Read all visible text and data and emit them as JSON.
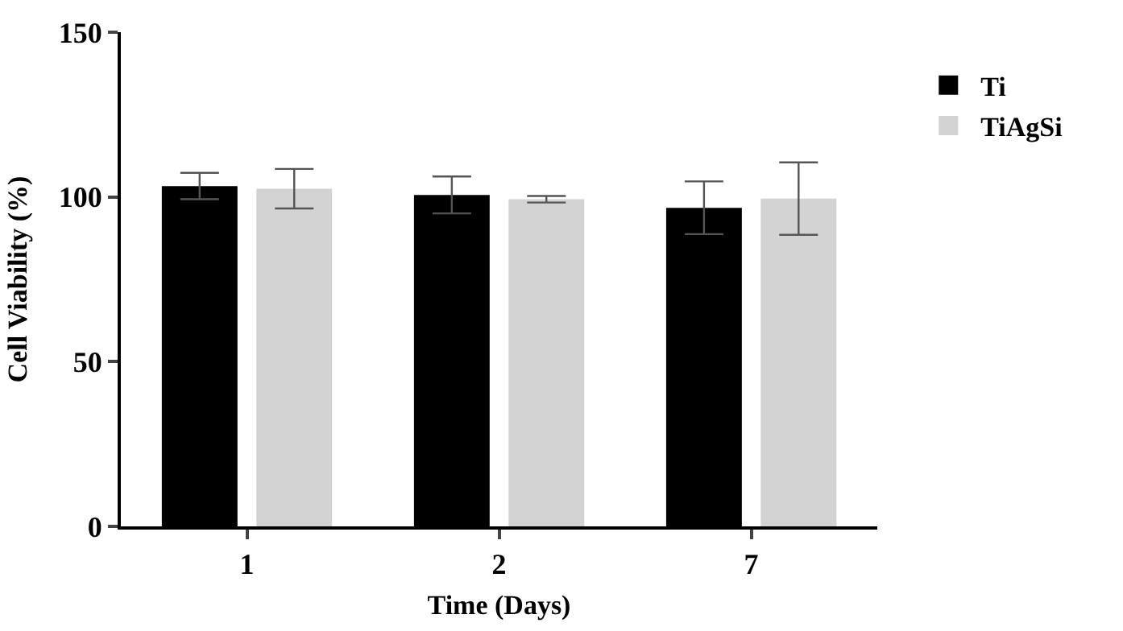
{
  "chart_data": {
    "type": "bar",
    "xlabel": "Time (Days)",
    "ylabel": "Cell Viability (%)",
    "categories": [
      "1",
      "2",
      "7"
    ],
    "series": [
      {
        "name": "Ti",
        "color": "#000000",
        "values": [
          103.3,
          100.6,
          96.7
        ],
        "errors": [
          4,
          5.6,
          8
        ]
      },
      {
        "name": "TiAgSi",
        "color": "#d3d3d3",
        "values": [
          102.5,
          99.3,
          99.5
        ],
        "errors": [
          6,
          1,
          11
        ]
      }
    ],
    "ylim": [
      0,
      150
    ],
    "yticks": [
      0,
      50,
      100,
      150
    ],
    "legend": "right"
  }
}
